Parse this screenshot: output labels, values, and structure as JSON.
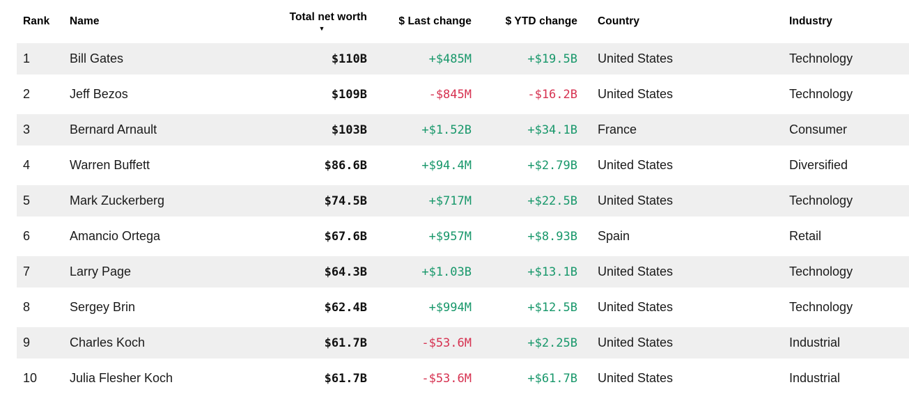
{
  "colors": {
    "positive": "#17976a",
    "negative": "#d63150",
    "stripe": "#efefef",
    "text": "#1a1a1a"
  },
  "table": {
    "sort_icon": "▼",
    "sorted_column": "Total net worth",
    "sort_direction": "descending",
    "columns": [
      {
        "key": "rank",
        "label": "Rank"
      },
      {
        "key": "name",
        "label": "Name"
      },
      {
        "key": "net_worth",
        "label": "Total net worth"
      },
      {
        "key": "last_change",
        "label": "$ Last change"
      },
      {
        "key": "ytd_change",
        "label": "$ YTD change"
      },
      {
        "key": "country",
        "label": "Country"
      },
      {
        "key": "industry",
        "label": "Industry"
      }
    ],
    "rows": [
      {
        "rank": "1",
        "name": "Bill Gates",
        "net_worth": "$110B",
        "last_change": {
          "text": "+$485M",
          "direction": "up"
        },
        "ytd_change": {
          "text": "+$19.5B",
          "direction": "up"
        },
        "country": "United States",
        "industry": "Technology"
      },
      {
        "rank": "2",
        "name": "Jeff Bezos",
        "net_worth": "$109B",
        "last_change": {
          "text": "-$845M",
          "direction": "down"
        },
        "ytd_change": {
          "text": "-$16.2B",
          "direction": "down"
        },
        "country": "United States",
        "industry": "Technology"
      },
      {
        "rank": "3",
        "name": "Bernard Arnault",
        "net_worth": "$103B",
        "last_change": {
          "text": "+$1.52B",
          "direction": "up"
        },
        "ytd_change": {
          "text": "+$34.1B",
          "direction": "up"
        },
        "country": "France",
        "industry": "Consumer"
      },
      {
        "rank": "4",
        "name": "Warren Buffett",
        "net_worth": "$86.6B",
        "last_change": {
          "text": "+$94.4M",
          "direction": "up"
        },
        "ytd_change": {
          "text": "+$2.79B",
          "direction": "up"
        },
        "country": "United States",
        "industry": "Diversified"
      },
      {
        "rank": "5",
        "name": "Mark Zuckerberg",
        "net_worth": "$74.5B",
        "last_change": {
          "text": "+$717M",
          "direction": "up"
        },
        "ytd_change": {
          "text": "+$22.5B",
          "direction": "up"
        },
        "country": "United States",
        "industry": "Technology"
      },
      {
        "rank": "6",
        "name": "Amancio Ortega",
        "net_worth": "$67.6B",
        "last_change": {
          "text": "+$957M",
          "direction": "up"
        },
        "ytd_change": {
          "text": "+$8.93B",
          "direction": "up"
        },
        "country": "Spain",
        "industry": "Retail"
      },
      {
        "rank": "7",
        "name": "Larry Page",
        "net_worth": "$64.3B",
        "last_change": {
          "text": "+$1.03B",
          "direction": "up"
        },
        "ytd_change": {
          "text": "+$13.1B",
          "direction": "up"
        },
        "country": "United States",
        "industry": "Technology"
      },
      {
        "rank": "8",
        "name": "Sergey Brin",
        "net_worth": "$62.4B",
        "last_change": {
          "text": "+$994M",
          "direction": "up"
        },
        "ytd_change": {
          "text": "+$12.5B",
          "direction": "up"
        },
        "country": "United States",
        "industry": "Technology"
      },
      {
        "rank": "9",
        "name": "Charles Koch",
        "net_worth": "$61.7B",
        "last_change": {
          "text": "-$53.6M",
          "direction": "down"
        },
        "ytd_change": {
          "text": "+$2.25B",
          "direction": "up"
        },
        "country": "United States",
        "industry": "Industrial"
      },
      {
        "rank": "10",
        "name": "Julia Flesher Koch",
        "net_worth": "$61.7B",
        "last_change": {
          "text": "-$53.6M",
          "direction": "down"
        },
        "ytd_change": {
          "text": "+$61.7B",
          "direction": "up"
        },
        "country": "United States",
        "industry": "Industrial"
      }
    ]
  }
}
